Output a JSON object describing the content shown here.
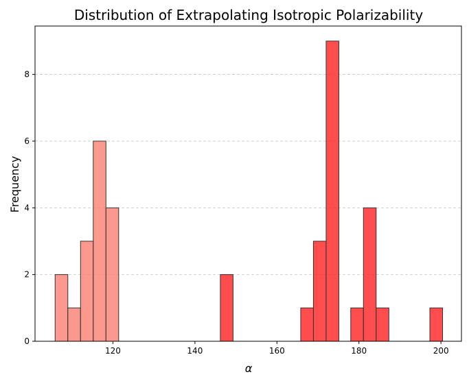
{
  "chart_data": {
    "type": "bar",
    "title": "Distribution of Extrapolating Isotropic Polarizability",
    "xlabel": "α",
    "ylabel": "Frequency",
    "xlim": [
      101,
      205
    ],
    "ylim": [
      0,
      9.45
    ],
    "x_ticks": [
      120,
      140,
      160,
      180,
      200
    ],
    "y_ticks": [
      0,
      2,
      4,
      6,
      8
    ],
    "grid": "y-dashed",
    "bin_width": 3.1,
    "series": [
      {
        "color": "#fa8072",
        "bins": [
          {
            "x0": 105.9,
            "x1": 109.0,
            "value": 2
          },
          {
            "x0": 109.0,
            "x1": 112.1,
            "value": 1
          },
          {
            "x0": 112.1,
            "x1": 115.2,
            "value": 3
          },
          {
            "x0": 115.2,
            "x1": 118.3,
            "value": 6
          },
          {
            "x0": 118.3,
            "x1": 121.4,
            "value": 4
          }
        ]
      },
      {
        "color": "#ff2020",
        "bins": [
          {
            "x0": 146.2,
            "x1": 149.3,
            "value": 2
          },
          {
            "x0": 165.8,
            "x1": 168.9,
            "value": 1
          },
          {
            "x0": 168.9,
            "x1": 172.0,
            "value": 3
          },
          {
            "x0": 172.0,
            "x1": 175.1,
            "value": 9
          },
          {
            "x0": 178.0,
            "x1": 181.1,
            "value": 1
          },
          {
            "x0": 181.1,
            "x1": 184.2,
            "value": 4
          },
          {
            "x0": 184.2,
            "x1": 187.3,
            "value": 1
          },
          {
            "x0": 197.3,
            "x1": 200.4,
            "value": 1
          }
        ]
      }
    ],
    "bar_opacity": 0.8,
    "edge_color": "#333333"
  }
}
